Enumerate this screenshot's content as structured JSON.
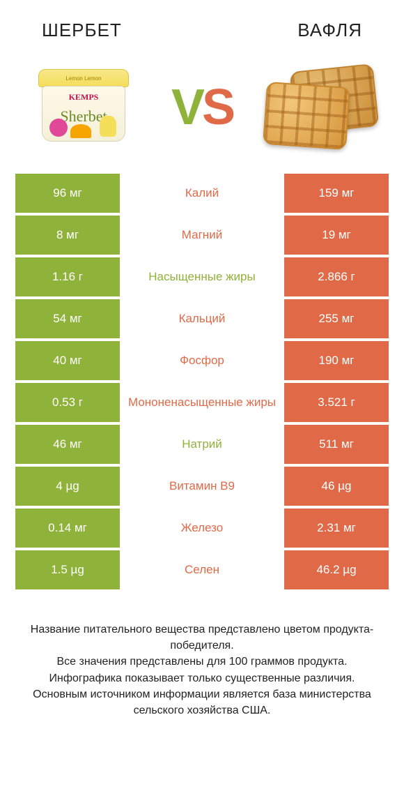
{
  "colors": {
    "green": "#8fb23a",
    "orange": "#e06a48",
    "green_dark": "#7fa02e",
    "orange_dark": "#d45a38",
    "text": "#222222",
    "white": "#ffffff"
  },
  "header": {
    "left": "ШЕРБЕТ",
    "right": "ВАФЛЯ"
  },
  "hero": {
    "vs_v": "V",
    "vs_s": "S",
    "sherbet_lid": "Lemon   Lemon",
    "sherbet_brand": "KEMPS",
    "sherbet_script": "Sherbet"
  },
  "rows": [
    {
      "left": "96 мг",
      "label": "Калий",
      "right": "159 мг",
      "winner": "right"
    },
    {
      "left": "8 мг",
      "label": "Магний",
      "right": "19 мг",
      "winner": "right"
    },
    {
      "left": "1.16 г",
      "label": "Насыщенные жиры",
      "right": "2.866 г",
      "winner": "left"
    },
    {
      "left": "54 мг",
      "label": "Кальций",
      "right": "255 мг",
      "winner": "right"
    },
    {
      "left": "40 мг",
      "label": "Фосфор",
      "right": "190 мг",
      "winner": "right"
    },
    {
      "left": "0.53 г",
      "label": "Мононенасыщенные жиры",
      "right": "3.521 г",
      "winner": "right"
    },
    {
      "left": "46 мг",
      "label": "Натрий",
      "right": "511 мг",
      "winner": "left"
    },
    {
      "left": "4 µg",
      "label": "Витамин B9",
      "right": "46 µg",
      "winner": "right"
    },
    {
      "left": "0.14 мг",
      "label": "Железо",
      "right": "2.31 мг",
      "winner": "right"
    },
    {
      "left": "1.5 µg",
      "label": "Селен",
      "right": "46.2 µg",
      "winner": "right"
    }
  ],
  "row_style": {
    "left_bg": "#8fb23a",
    "right_bg": "#e06a48",
    "height": 56,
    "font_size": 17,
    "text_color": "#ffffff"
  },
  "footer": {
    "line1": "Название питательного вещества представлено цветом продукта-победителя.",
    "line2": "Все значения представлены для 100 граммов продукта.",
    "line3": "Инфографика показывает только существенные различия.",
    "line4": "Основным источником информации является база министерства сельского хозяйства США."
  }
}
